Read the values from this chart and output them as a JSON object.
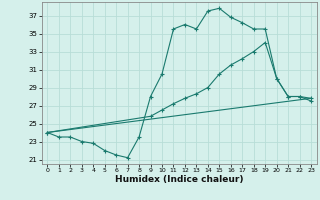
{
  "xlabel": "Humidex (Indice chaleur)",
  "ylabel": "",
  "background_color": "#d5f0eb",
  "grid_color": "#b8ddd7",
  "line_color": "#1a7a6e",
  "xlim": [
    -0.5,
    23.5
  ],
  "ylim": [
    20.5,
    38.5
  ],
  "yticks": [
    21,
    23,
    25,
    27,
    29,
    31,
    33,
    35,
    37
  ],
  "xticks": [
    0,
    1,
    2,
    3,
    4,
    5,
    6,
    7,
    8,
    9,
    10,
    11,
    12,
    13,
    14,
    15,
    16,
    17,
    18,
    19,
    20,
    21,
    22,
    23
  ],
  "line1_x": [
    0,
    1,
    2,
    3,
    4,
    5,
    6,
    7,
    8,
    9,
    10,
    11,
    12,
    13,
    14,
    15,
    16,
    17,
    18,
    19,
    20,
    21,
    22,
    23
  ],
  "line1_y": [
    24.0,
    23.5,
    23.5,
    23.0,
    22.8,
    22.0,
    21.5,
    21.2,
    23.5,
    28.0,
    30.5,
    35.5,
    36.0,
    35.5,
    37.5,
    37.8,
    36.8,
    36.2,
    35.5,
    35.5,
    30.0,
    28.0,
    28.0,
    27.5
  ],
  "line2_x": [
    0,
    9,
    10,
    11,
    12,
    13,
    14,
    15,
    16,
    17,
    18,
    19,
    20,
    21,
    22,
    23
  ],
  "line2_y": [
    24.0,
    25.8,
    26.5,
    27.2,
    27.8,
    28.3,
    29.0,
    30.5,
    31.5,
    32.2,
    33.0,
    34.0,
    30.0,
    28.0,
    28.0,
    27.8
  ],
  "line3_x": [
    0,
    23
  ],
  "line3_y": [
    24.0,
    27.8
  ]
}
